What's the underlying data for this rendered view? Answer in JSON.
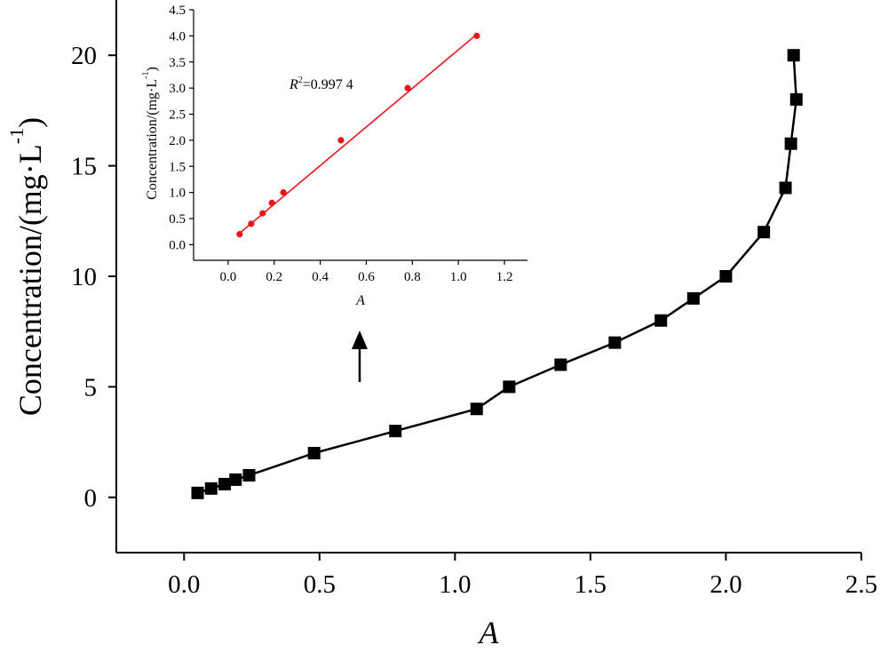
{
  "chart_data": [
    {
      "type": "line",
      "title": "",
      "xlabel": "A",
      "ylabel": "Concentration/(mg·L",
      "ylabel_superscript": "-1",
      "ylabel_suffix": ")",
      "xlim": [
        -0.25,
        2.5
      ],
      "ylim": [
        -2.5,
        22.5
      ],
      "xticks": [
        0.0,
        0.5,
        1.0,
        1.5,
        2.0,
        2.5
      ],
      "xtick_labels": [
        "0.0",
        "0.5",
        "1.0",
        "1.5",
        "2.0",
        "2.5"
      ],
      "yticks": [
        0,
        5,
        10,
        15,
        20
      ],
      "ytick_labels": [
        "0",
        "5",
        "10",
        "15",
        "20"
      ],
      "grid": false,
      "marker": "square",
      "series": [
        {
          "color": "#000000",
          "x": [
            0.05,
            0.1,
            0.15,
            0.19,
            0.24,
            0.48,
            0.78,
            1.08,
            1.2,
            1.39,
            1.59,
            1.76,
            1.88,
            2.0,
            2.14,
            2.22,
            2.24,
            2.26,
            2.25
          ],
          "y": [
            0.2,
            0.4,
            0.6,
            0.8,
            1.0,
            2,
            3,
            4,
            5,
            6,
            7,
            8,
            9,
            10,
            12,
            14,
            16,
            18,
            20
          ]
        }
      ]
    },
    {
      "type": "scatter",
      "title": "",
      "xlabel": "A",
      "ylabel": "Concentration/(mg·L",
      "ylabel_superscript": "-1",
      "ylabel_suffix": ")",
      "xlim": [
        -0.15,
        1.3
      ],
      "ylim": [
        -0.3,
        4.5
      ],
      "xticks": [
        0.0,
        0.2,
        0.4,
        0.6,
        0.8,
        1.0,
        1.2
      ],
      "xtick_labels": [
        "0.0",
        "0.2",
        "0.4",
        "0.6",
        "0.8",
        "1.0",
        "1.2"
      ],
      "yticks": [
        0.0,
        0.5,
        1.0,
        1.5,
        2.0,
        2.5,
        3.0,
        3.5,
        4.0,
        4.5
      ],
      "ytick_labels": [
        "0.0",
        "0.5",
        "1.0",
        "1.5",
        "2.0",
        "2.5",
        "3.0",
        "3.5",
        "4.0",
        "4.5"
      ],
      "grid": false,
      "annotation": {
        "italic": "R",
        "superscript": "2",
        "text": "=0.997 4"
      },
      "series": [
        {
          "color": "#e8161c",
          "x": [
            0.05,
            0.1,
            0.15,
            0.19,
            0.24,
            0.49,
            0.78,
            1.08
          ],
          "y": [
            0.2,
            0.4,
            0.6,
            0.8,
            1.0,
            2.0,
            3.0,
            4.0
          ],
          "fit": {
            "x": [
              0.05,
              1.08
            ],
            "y": [
              0.22,
              4.03
            ]
          }
        }
      ]
    }
  ]
}
